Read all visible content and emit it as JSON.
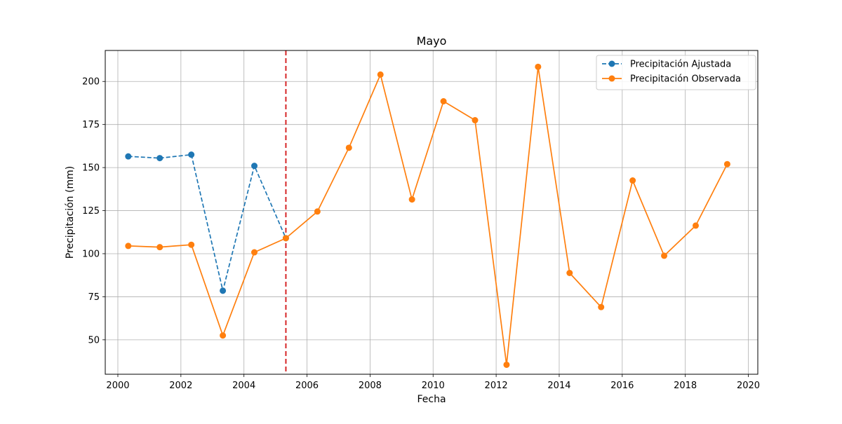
{
  "chart_data": {
    "type": "line",
    "title": "Mayo",
    "xlabel": "Fecha",
    "ylabel": "Precipitación (mm)",
    "xlim": [
      1999.6,
      2020.3
    ],
    "ylim": [
      30,
      218
    ],
    "xticks": [
      2000,
      2002,
      2004,
      2006,
      2008,
      2010,
      2012,
      2014,
      2016,
      2018,
      2020
    ],
    "xtick_labels": [
      "2000",
      "2002",
      "2004",
      "2006",
      "2008",
      "2010",
      "2012",
      "2014",
      "2016",
      "2018",
      "2020"
    ],
    "yticks": [
      50,
      75,
      100,
      125,
      150,
      175,
      200
    ],
    "ytick_labels": [
      "50",
      "75",
      "100",
      "125",
      "150",
      "175",
      "200"
    ],
    "grid": true,
    "legend_position": "top-right",
    "vertical_line": {
      "x": 2005.33,
      "color": "#d62728",
      "style": "dashed"
    },
    "series": [
      {
        "name": "Precipitación Ajustada",
        "color": "#1f77b4",
        "line_style": "dashed",
        "marker": "circle",
        "x": [
          2000.33,
          2001.33,
          2002.33,
          2003.33,
          2004.33,
          2005.33
        ],
        "y": [
          156.5,
          155.5,
          157.5,
          78.5,
          151,
          109
        ]
      },
      {
        "name": "Precipitación Observada",
        "color": "#ff7f0e",
        "line_style": "solid",
        "marker": "circle",
        "x": [
          2000.33,
          2001.33,
          2002.33,
          2003.33,
          2004.33,
          2005.33,
          2006.33,
          2007.33,
          2008.33,
          2009.33,
          2010.33,
          2011.33,
          2012.33,
          2013.33,
          2014.33,
          2015.33,
          2016.33,
          2017.33,
          2018.33,
          2019.33
        ],
        "y": [
          104.5,
          103.8,
          105.2,
          52.5,
          100.8,
          109,
          124.5,
          161.5,
          204,
          131.5,
          188.5,
          177.5,
          35.5,
          208.5,
          88.8,
          69,
          142.5,
          98.8,
          116.3,
          152
        ]
      }
    ]
  }
}
